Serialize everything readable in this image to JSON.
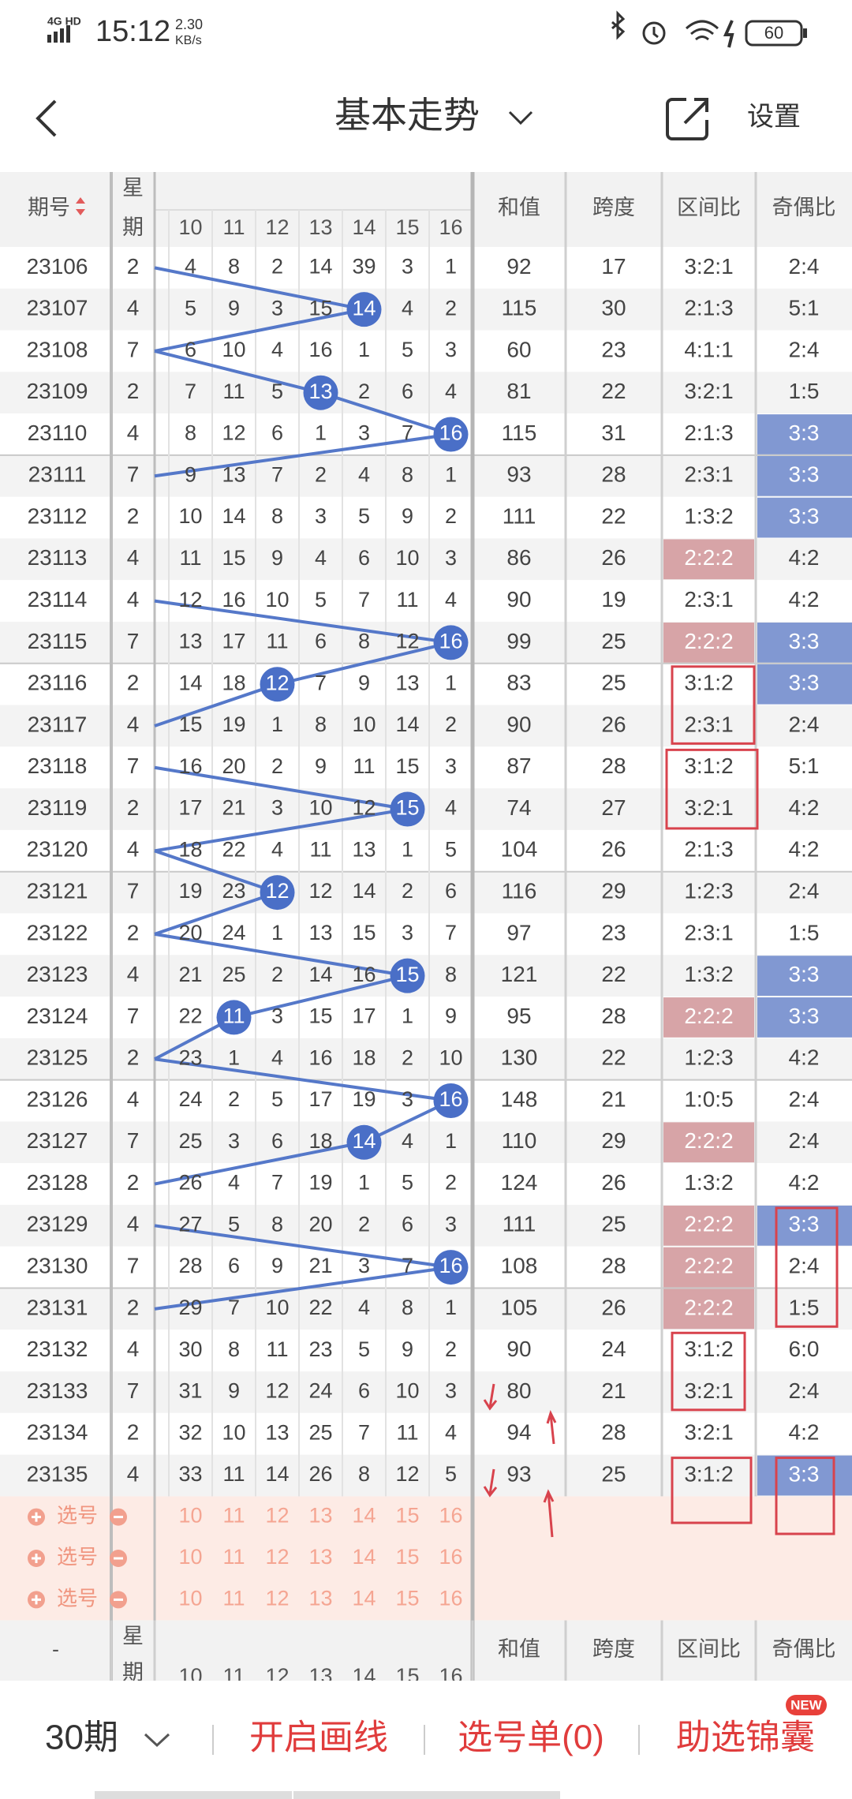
{
  "status_bar": {
    "network": "4G HD",
    "time": "15:12",
    "speed": "2.30",
    "speed_unit": "KB/s",
    "battery": "60"
  },
  "header": {
    "title": "基本走势",
    "action": "设置"
  },
  "table": {
    "columns": {
      "period": "期号",
      "weekday": [
        "星",
        "期"
      ],
      "numbers": [
        10,
        11,
        12,
        13,
        14,
        15,
        16
      ],
      "sum": "和值",
      "span": "跨度",
      "zone": "区间比",
      "parity": "奇偶比"
    },
    "zone_highlight_color": "#d7a4a7",
    "parity_highlight_color": "#8198d2",
    "ball_color": "#4a6fc7",
    "rows": [
      {
        "period": "23106",
        "weekday": 2,
        "cells": [
          4,
          8,
          2,
          14,
          39,
          3,
          1
        ],
        "ball": null,
        "sum": 92,
        "span": 17,
        "zone": "3:2:1",
        "parity": "2:4",
        "zone_hl": false,
        "parity_hl": false
      },
      {
        "period": "23107",
        "weekday": 4,
        "cells": [
          5,
          9,
          3,
          15,
          14,
          4,
          2
        ],
        "ball": 4,
        "sum": 115,
        "span": 30,
        "zone": "2:1:3",
        "parity": "5:1",
        "zone_hl": false,
        "parity_hl": false
      },
      {
        "period": "23108",
        "weekday": 7,
        "cells": [
          6,
          10,
          4,
          16,
          1,
          5,
          3
        ],
        "ball": null,
        "sum": 60,
        "span": 23,
        "zone": "4:1:1",
        "parity": "2:4",
        "zone_hl": false,
        "parity_hl": false
      },
      {
        "period": "23109",
        "weekday": 2,
        "cells": [
          7,
          11,
          5,
          13,
          2,
          6,
          4
        ],
        "ball": 3,
        "sum": 81,
        "span": 22,
        "zone": "3:2:1",
        "parity": "1:5",
        "zone_hl": false,
        "parity_hl": false
      },
      {
        "period": "23110",
        "weekday": 4,
        "cells": [
          8,
          12,
          6,
          1,
          3,
          7,
          16
        ],
        "ball": 6,
        "sum": 115,
        "span": 31,
        "zone": "2:1:3",
        "parity": "3:3",
        "zone_hl": false,
        "parity_hl": true
      },
      {
        "period": "23111",
        "weekday": 7,
        "cells": [
          9,
          13,
          7,
          2,
          4,
          8,
          1
        ],
        "ball": null,
        "sum": 93,
        "span": 28,
        "zone": "2:3:1",
        "parity": "3:3",
        "zone_hl": false,
        "parity_hl": true
      },
      {
        "period": "23112",
        "weekday": 2,
        "cells": [
          10,
          14,
          8,
          3,
          5,
          9,
          2
        ],
        "ball": null,
        "sum": 111,
        "span": 22,
        "zone": "1:3:2",
        "parity": "3:3",
        "zone_hl": false,
        "parity_hl": true
      },
      {
        "period": "23113",
        "weekday": 4,
        "cells": [
          11,
          15,
          9,
          4,
          6,
          10,
          3
        ],
        "ball": null,
        "sum": 86,
        "span": 26,
        "zone": "2:2:2",
        "parity": "4:2",
        "zone_hl": true,
        "parity_hl": false
      },
      {
        "period": "23114",
        "weekday": 4,
        "cells": [
          12,
          16,
          10,
          5,
          7,
          11,
          4
        ],
        "ball": null,
        "sum": 90,
        "span": 19,
        "zone": "2:3:1",
        "parity": "4:2",
        "zone_hl": false,
        "parity_hl": false
      },
      {
        "period": "23115",
        "weekday": 7,
        "cells": [
          13,
          17,
          11,
          6,
          8,
          12,
          16
        ],
        "ball": 6,
        "sum": 99,
        "span": 25,
        "zone": "2:2:2",
        "parity": "3:3",
        "zone_hl": true,
        "parity_hl": true
      },
      {
        "period": "23116",
        "weekday": 2,
        "cells": [
          14,
          18,
          12,
          7,
          9,
          13,
          1
        ],
        "ball": 2,
        "sum": 83,
        "span": 25,
        "zone": "3:1:2",
        "parity": "3:3",
        "zone_hl": false,
        "parity_hl": true
      },
      {
        "period": "23117",
        "weekday": 4,
        "cells": [
          15,
          19,
          1,
          8,
          10,
          14,
          2
        ],
        "ball": null,
        "sum": 90,
        "span": 26,
        "zone": "2:3:1",
        "parity": "2:4",
        "zone_hl": false,
        "parity_hl": false
      },
      {
        "period": "23118",
        "weekday": 7,
        "cells": [
          16,
          20,
          2,
          9,
          11,
          15,
          3
        ],
        "ball": null,
        "sum": 87,
        "span": 28,
        "zone": "3:1:2",
        "parity": "5:1",
        "zone_hl": false,
        "parity_hl": false
      },
      {
        "period": "23119",
        "weekday": 2,
        "cells": [
          17,
          21,
          3,
          10,
          12,
          15,
          4
        ],
        "ball": 5,
        "sum": 74,
        "span": 27,
        "zone": "3:2:1",
        "parity": "4:2",
        "zone_hl": false,
        "parity_hl": false
      },
      {
        "period": "23120",
        "weekday": 4,
        "cells": [
          18,
          22,
          4,
          11,
          13,
          1,
          5
        ],
        "ball": null,
        "sum": 104,
        "span": 26,
        "zone": "2:1:3",
        "parity": "4:2",
        "zone_hl": false,
        "parity_hl": false
      },
      {
        "period": "23121",
        "weekday": 7,
        "cells": [
          19,
          23,
          12,
          12,
          14,
          2,
          6
        ],
        "ball": 2,
        "sum": 116,
        "span": 29,
        "zone": "1:2:3",
        "parity": "2:4",
        "zone_hl": false,
        "parity_hl": false
      },
      {
        "period": "23122",
        "weekday": 2,
        "cells": [
          20,
          24,
          1,
          13,
          15,
          3,
          7
        ],
        "ball": null,
        "sum": 97,
        "span": 23,
        "zone": "2:3:1",
        "parity": "1:5",
        "zone_hl": false,
        "parity_hl": false
      },
      {
        "period": "23123",
        "weekday": 4,
        "cells": [
          21,
          25,
          2,
          14,
          16,
          15,
          8
        ],
        "ball": 5,
        "sum": 121,
        "span": 22,
        "zone": "1:3:2",
        "parity": "3:3",
        "zone_hl": false,
        "parity_hl": true
      },
      {
        "period": "23124",
        "weekday": 7,
        "cells": [
          22,
          11,
          3,
          15,
          17,
          1,
          9
        ],
        "ball": 1,
        "sum": 95,
        "span": 28,
        "zone": "2:2:2",
        "parity": "3:3",
        "zone_hl": true,
        "parity_hl": true
      },
      {
        "period": "23125",
        "weekday": 2,
        "cells": [
          23,
          1,
          4,
          16,
          18,
          2,
          10
        ],
        "ball": null,
        "sum": 130,
        "span": 22,
        "zone": "1:2:3",
        "parity": "4:2",
        "zone_hl": false,
        "parity_hl": false
      },
      {
        "period": "23126",
        "weekday": 4,
        "cells": [
          24,
          2,
          5,
          17,
          19,
          3,
          16
        ],
        "ball": 6,
        "sum": 148,
        "span": 21,
        "zone": "1:0:5",
        "parity": "2:4",
        "zone_hl": false,
        "parity_hl": false
      },
      {
        "period": "23127",
        "weekday": 7,
        "cells": [
          25,
          3,
          6,
          18,
          14,
          4,
          1
        ],
        "ball": 4,
        "sum": 110,
        "span": 29,
        "zone": "2:2:2",
        "parity": "2:4",
        "zone_hl": true,
        "parity_hl": false
      },
      {
        "period": "23128",
        "weekday": 2,
        "cells": [
          26,
          4,
          7,
          19,
          1,
          5,
          2
        ],
        "ball": null,
        "sum": 124,
        "span": 26,
        "zone": "1:3:2",
        "parity": "4:2",
        "zone_hl": false,
        "parity_hl": false
      },
      {
        "period": "23129",
        "weekday": 4,
        "cells": [
          27,
          5,
          8,
          20,
          2,
          6,
          3
        ],
        "ball": null,
        "sum": 111,
        "span": 25,
        "zone": "2:2:2",
        "parity": "3:3",
        "zone_hl": true,
        "parity_hl": true
      },
      {
        "period": "23130",
        "weekday": 7,
        "cells": [
          28,
          6,
          9,
          21,
          3,
          7,
          16
        ],
        "ball": 6,
        "sum": 108,
        "span": 28,
        "zone": "2:2:2",
        "parity": "2:4",
        "zone_hl": true,
        "parity_hl": false
      },
      {
        "period": "23131",
        "weekday": 2,
        "cells": [
          29,
          7,
          10,
          22,
          4,
          8,
          1
        ],
        "ball": null,
        "sum": 105,
        "span": 26,
        "zone": "2:2:2",
        "parity": "1:5",
        "zone_hl": true,
        "parity_hl": false
      },
      {
        "period": "23132",
        "weekday": 4,
        "cells": [
          30,
          8,
          11,
          23,
          5,
          9,
          2
        ],
        "ball": null,
        "sum": 90,
        "span": 24,
        "zone": "3:1:2",
        "parity": "6:0",
        "zone_hl": false,
        "parity_hl": false
      },
      {
        "period": "23133",
        "weekday": 7,
        "cells": [
          31,
          9,
          12,
          24,
          6,
          10,
          3
        ],
        "ball": null,
        "sum": 80,
        "span": 21,
        "zone": "3:2:1",
        "parity": "2:4",
        "zone_hl": false,
        "parity_hl": false
      },
      {
        "period": "23134",
        "weekday": 2,
        "cells": [
          32,
          10,
          13,
          25,
          7,
          11,
          4
        ],
        "ball": null,
        "sum": 94,
        "span": 28,
        "zone": "3:2:1",
        "parity": "4:2",
        "zone_hl": false,
        "parity_hl": false
      },
      {
        "period": "23135",
        "weekday": 4,
        "cells": [
          33,
          11,
          14,
          26,
          8,
          12,
          5
        ],
        "ball": null,
        "sum": 93,
        "span": 25,
        "zone": "3:1:2",
        "parity": "3:3",
        "zone_hl": false,
        "parity_hl": true
      }
    ]
  },
  "select_rows": [
    "选号",
    "选号",
    "选号"
  ],
  "bottom_header": {
    "period": "-"
  },
  "footer": {
    "periods": "30期",
    "draw": "开启画线",
    "list": "选号单(0)",
    "assist": "助选锦囊",
    "badge": "NEW"
  }
}
